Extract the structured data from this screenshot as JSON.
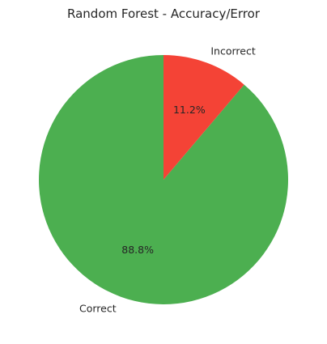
{
  "chart_data": {
    "type": "pie",
    "title": "Random Forest - Accuracy/Error",
    "slices": [
      {
        "label": "Correct",
        "value": 88.8,
        "pct_label": "88.8%",
        "color": "#4caf50"
      },
      {
        "label": "Incorrect",
        "value": 11.2,
        "pct_label": "11.2%",
        "color": "#f44336"
      }
    ],
    "start_angle": "top",
    "direction": "counter-clockwise"
  }
}
